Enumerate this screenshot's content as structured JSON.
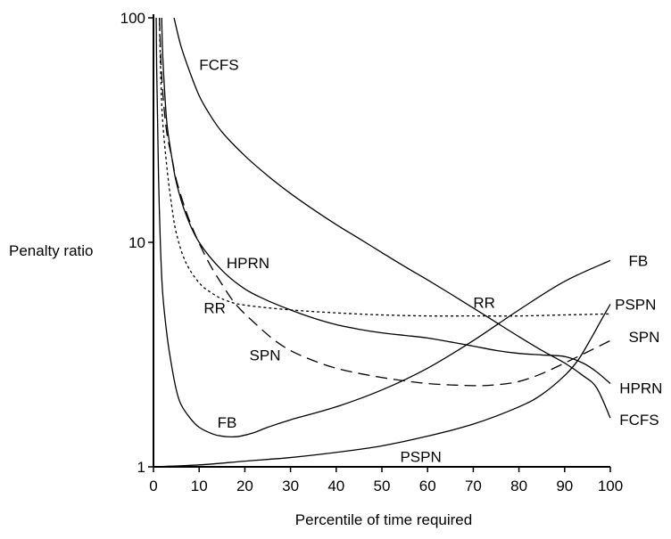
{
  "chart_data": {
    "type": "line",
    "title": "",
    "xlabel": "Percentile of time required",
    "ylabel": "Penalty ratio",
    "xlim": [
      0,
      100
    ],
    "ylim": [
      1,
      100
    ],
    "yscale": "log",
    "grid": false,
    "legend": "none (series labeled directly on curves)",
    "x_ticks": [
      "0",
      "10",
      "20",
      "30",
      "40",
      "50",
      "60",
      "70",
      "80",
      "90",
      "100"
    ],
    "y_ticks": [
      "1",
      "10",
      "100"
    ],
    "series": [
      {
        "name": "FCFS",
        "labels": [
          "FCFS",
          "FCFS"
        ],
        "line_style": "solid",
        "points": [
          [
            4.5,
            100
          ],
          [
            6,
            75
          ],
          [
            8,
            57
          ],
          [
            10,
            45
          ],
          [
            12,
            38
          ],
          [
            15,
            31
          ],
          [
            20,
            24.3
          ],
          [
            25,
            19.8
          ],
          [
            30,
            16.5
          ],
          [
            35,
            14
          ],
          [
            40,
            12
          ],
          [
            45,
            10.4
          ],
          [
            50,
            9
          ],
          [
            55,
            7.8
          ],
          [
            60,
            6.8
          ],
          [
            65,
            5.9
          ],
          [
            70,
            5.1
          ],
          [
            75,
            4.4
          ],
          [
            80,
            3.8
          ],
          [
            85,
            3.3
          ],
          [
            90,
            2.9
          ],
          [
            94,
            2.55
          ],
          [
            97,
            2.25
          ],
          [
            100,
            1.65
          ]
        ]
      },
      {
        "name": "HPRN",
        "labels": [
          "HPRN",
          "HPRN"
        ],
        "line_style": "solid",
        "points": [
          [
            1.8,
            100
          ],
          [
            2,
            70
          ],
          [
            2.5,
            45
          ],
          [
            3,
            33
          ],
          [
            4,
            24
          ],
          [
            5,
            18.5
          ],
          [
            7,
            13.5
          ],
          [
            10,
            10
          ],
          [
            15,
            7.5
          ],
          [
            20,
            6.2
          ],
          [
            25,
            5.5
          ],
          [
            30,
            5
          ],
          [
            35,
            4.6
          ],
          [
            40,
            4.3
          ],
          [
            45,
            4.1
          ],
          [
            50,
            3.95
          ],
          [
            55,
            3.85
          ],
          [
            60,
            3.75
          ],
          [
            65,
            3.6
          ],
          [
            70,
            3.45
          ],
          [
            75,
            3.3
          ],
          [
            80,
            3.2
          ],
          [
            85,
            3.15
          ],
          [
            90,
            3.1
          ],
          [
            94,
            2.9
          ],
          [
            97,
            2.65
          ],
          [
            100,
            2.35
          ]
        ]
      },
      {
        "name": "RR",
        "labels": [
          "RR",
          "RR"
        ],
        "line_style": "dotted",
        "points": [
          [
            1.3,
            100
          ],
          [
            1.6,
            55
          ],
          [
            2,
            35
          ],
          [
            3,
            21
          ],
          [
            4,
            14.5
          ],
          [
            5,
            11
          ],
          [
            7,
            8.2
          ],
          [
            10,
            6.6
          ],
          [
            13,
            5.9
          ],
          [
            16,
            5.5
          ],
          [
            20,
            5.25
          ],
          [
            30,
            5
          ],
          [
            40,
            4.85
          ],
          [
            50,
            4.75
          ],
          [
            60,
            4.7
          ],
          [
            70,
            4.7
          ],
          [
            80,
            4.7
          ],
          [
            90,
            4.75
          ],
          [
            100,
            4.8
          ]
        ]
      },
      {
        "name": "SPN",
        "labels": [
          "SPN",
          "SPN"
        ],
        "line_style": "dashed",
        "points": [
          [
            1.3,
            100
          ],
          [
            1.7,
            60
          ],
          [
            2.3,
            40
          ],
          [
            3,
            30
          ],
          [
            4,
            24
          ],
          [
            5,
            19
          ],
          [
            7,
            14
          ],
          [
            9,
            11
          ],
          [
            12,
            8.2
          ],
          [
            15,
            6.5
          ],
          [
            18,
            5.3
          ],
          [
            22,
            4.4
          ],
          [
            27,
            3.6
          ],
          [
            32,
            3.15
          ],
          [
            40,
            2.75
          ],
          [
            50,
            2.5
          ],
          [
            60,
            2.35
          ],
          [
            70,
            2.3
          ],
          [
            75,
            2.32
          ],
          [
            80,
            2.4
          ],
          [
            85,
            2.6
          ],
          [
            90,
            2.9
          ],
          [
            95,
            3.25
          ],
          [
            100,
            3.65
          ]
        ]
      },
      {
        "name": "FB",
        "labels": [
          "FB",
          "FB"
        ],
        "line_style": "solid",
        "points": [
          [
            0.6,
            100
          ],
          [
            0.7,
            60
          ],
          [
            0.9,
            35
          ],
          [
            1.1,
            20
          ],
          [
            1.5,
            10
          ],
          [
            2,
            6
          ],
          [
            3,
            3.8
          ],
          [
            4,
            2.8
          ],
          [
            5,
            2.2
          ],
          [
            6,
            1.9
          ],
          [
            8,
            1.65
          ],
          [
            10,
            1.5
          ],
          [
            13,
            1.4
          ],
          [
            15,
            1.37
          ],
          [
            17,
            1.36
          ],
          [
            19,
            1.37
          ],
          [
            22,
            1.42
          ],
          [
            25,
            1.5
          ],
          [
            30,
            1.62
          ],
          [
            40,
            1.85
          ],
          [
            50,
            2.2
          ],
          [
            60,
            2.75
          ],
          [
            70,
            3.65
          ],
          [
            80,
            5
          ],
          [
            90,
            6.7
          ],
          [
            100,
            8.3
          ]
        ]
      },
      {
        "name": "PSPN",
        "labels": [
          "PSPN",
          "PSPN"
        ],
        "line_style": "solid",
        "points": [
          [
            0,
            1
          ],
          [
            10,
            1.02
          ],
          [
            20,
            1.06
          ],
          [
            30,
            1.1
          ],
          [
            40,
            1.16
          ],
          [
            50,
            1.24
          ],
          [
            60,
            1.37
          ],
          [
            70,
            1.55
          ],
          [
            80,
            1.85
          ],
          [
            85,
            2.1
          ],
          [
            90,
            2.55
          ],
          [
            93,
            3
          ],
          [
            96,
            3.8
          ],
          [
            98,
            4.5
          ],
          [
            100,
            5.3
          ]
        ]
      }
    ],
    "annotations": [
      {
        "text": "FCFS",
        "x": 10,
        "y": 62
      },
      {
        "text": "HPRN",
        "x": 16,
        "y": 8.1
      },
      {
        "text": "RR",
        "x": 11,
        "y": 5.1
      },
      {
        "text": "SPN",
        "x": 21,
        "y": 3.15
      },
      {
        "text": "FB",
        "x": 14,
        "y": 1.58
      },
      {
        "text": "PSPN",
        "x": 54,
        "y": 1.11
      },
      {
        "text": "RR",
        "x": 70,
        "y": 5.4
      },
      {
        "text": "FB",
        "x": 104,
        "y": 8.3
      },
      {
        "text": "PSPN",
        "x": 101,
        "y": 5.3
      },
      {
        "text": "SPN",
        "x": 104,
        "y": 3.8
      },
      {
        "text": "HPRN",
        "x": 102,
        "y": 2.25
      },
      {
        "text": "FCFS",
        "x": 102,
        "y": 1.62
      }
    ]
  }
}
